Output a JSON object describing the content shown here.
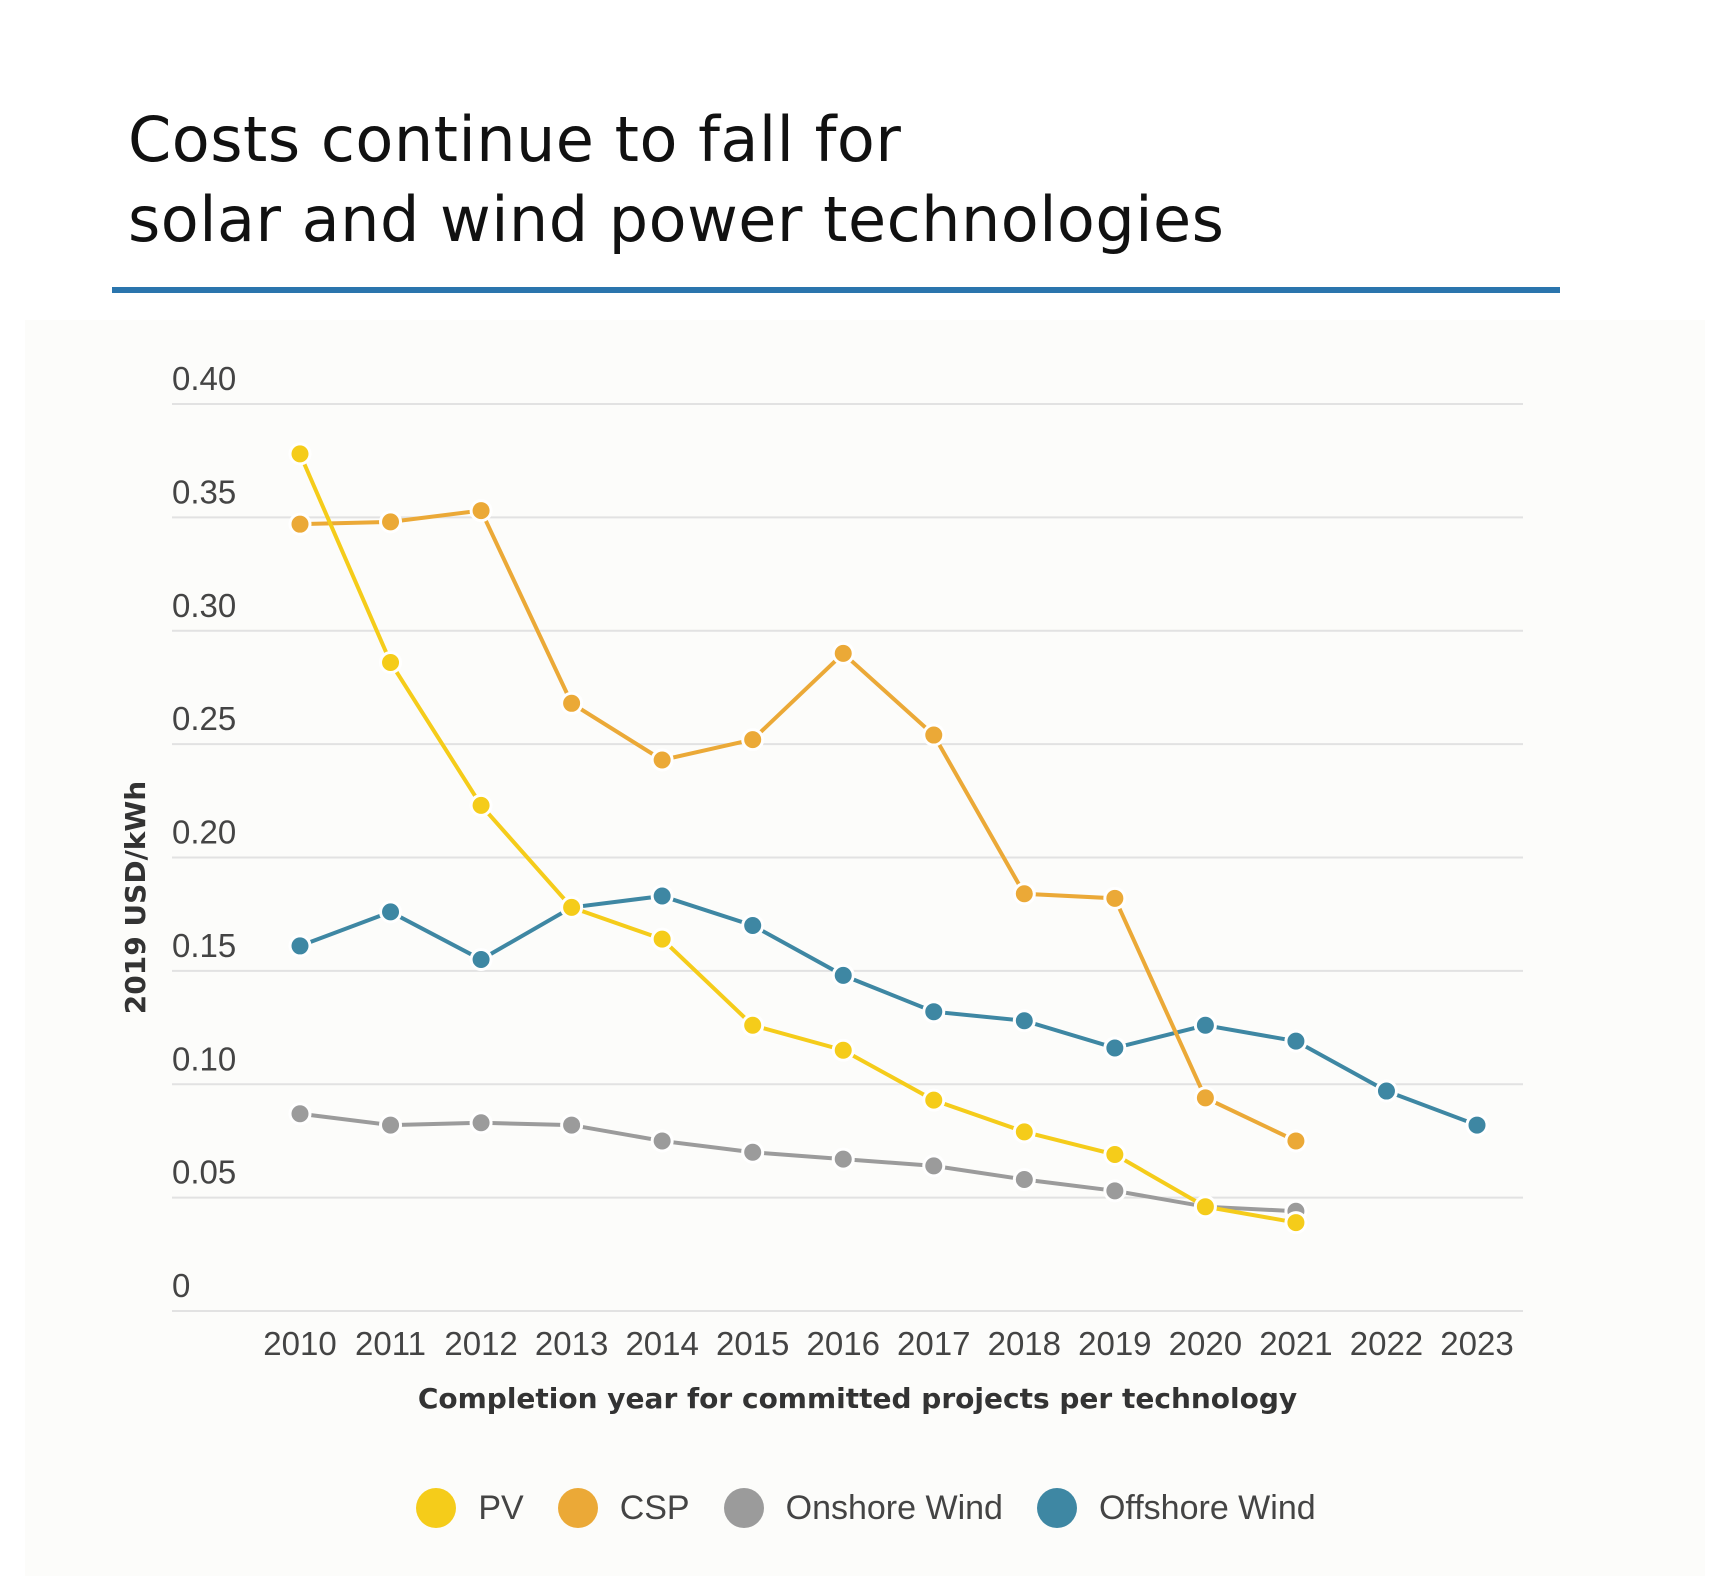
{
  "title_lines": [
    "Costs continue to fall for",
    "solar and wind power technologies"
  ],
  "chart_data": {
    "type": "line",
    "title": "Costs continue to fall for solar and wind power technologies",
    "xlabel": "Completion year for committed projects per technology",
    "ylabel": "2019 USD/kWh",
    "x": [
      2010,
      2011,
      2012,
      2013,
      2014,
      2015,
      2016,
      2017,
      2018,
      2019,
      2020,
      2021,
      2022,
      2023
    ],
    "ylim": [
      0,
      0.4
    ],
    "yticks": [
      "0",
      "0.05",
      "0.10",
      "0.15",
      "0.20",
      "0.25",
      "0.30",
      "0.35",
      "0.40"
    ],
    "grid": true,
    "legend": "bottom",
    "series": [
      {
        "name": "PV",
        "color": "#f5cc1a",
        "values": [
          0.378,
          0.286,
          0.223,
          0.178,
          0.164,
          0.126,
          0.115,
          0.093,
          0.079,
          0.069,
          0.046,
          0.039,
          null,
          null
        ]
      },
      {
        "name": "CSP",
        "color": "#eba937",
        "values": [
          0.347,
          0.348,
          0.353,
          0.268,
          0.243,
          0.252,
          0.29,
          0.254,
          0.184,
          0.182,
          0.094,
          0.075,
          null,
          null
        ]
      },
      {
        "name": "Onshore Wind",
        "color": "#9b9b9b",
        "values": [
          0.087,
          0.082,
          0.083,
          0.082,
          0.075,
          0.07,
          0.067,
          0.064,
          0.058,
          0.053,
          0.046,
          0.044,
          null,
          null
        ]
      },
      {
        "name": "Offshore Wind",
        "color": "#3e87a3",
        "values": [
          0.161,
          0.176,
          0.155,
          0.178,
          0.183,
          0.17,
          0.148,
          0.132,
          0.128,
          0.116,
          0.126,
          0.119,
          0.097,
          0.082
        ]
      }
    ]
  },
  "colors": {
    "rule": "#2a75ad"
  }
}
